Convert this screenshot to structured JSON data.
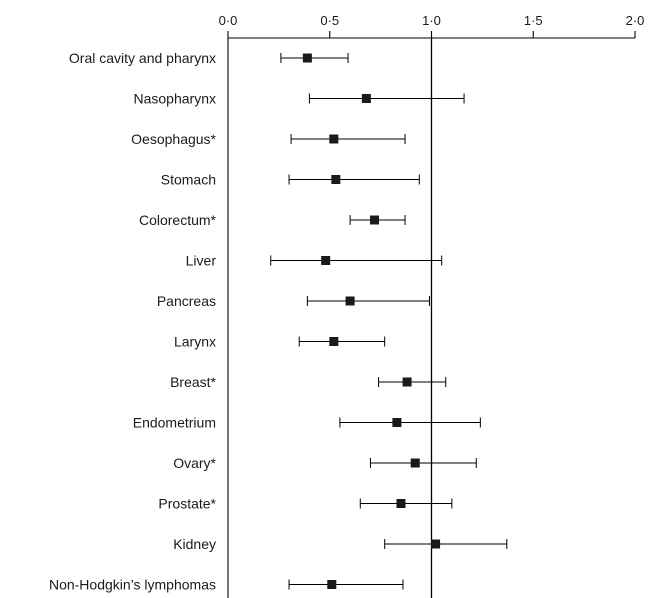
{
  "chart_data": {
    "type": "forest",
    "title": "",
    "xlabel": "",
    "ylabel": "",
    "xlim": [
      0,
      2
    ],
    "x_ticks": [
      0,
      0.5,
      1,
      1.5,
      2
    ],
    "x_tick_labels": [
      "0·0",
      "0·5",
      "1·0",
      "1·5",
      "2·0"
    ],
    "reference_line": 1,
    "grid": false,
    "categories": [
      "Oral cavity and pharynx",
      "Nasopharynx",
      "Oesophagus*",
      "Stomach",
      "Colorectum*",
      "Liver",
      "Pancreas",
      "Larynx",
      "Breast*",
      "Endometrium",
      "Ovary*",
      "Prostate*",
      "Kidney",
      "Non-Hodgkin’s lymphomas"
    ],
    "estimates": [
      0.39,
      0.68,
      0.52,
      0.53,
      0.72,
      0.48,
      0.6,
      0.52,
      0.88,
      0.83,
      0.92,
      0.85,
      1.02,
      0.51
    ],
    "lower": [
      0.26,
      0.4,
      0.31,
      0.3,
      0.6,
      0.21,
      0.39,
      0.35,
      0.74,
      0.55,
      0.7,
      0.65,
      0.77,
      0.3
    ],
    "upper": [
      0.59,
      1.16,
      0.87,
      0.94,
      0.87,
      1.05,
      0.99,
      0.77,
      1.07,
      1.24,
      1.22,
      1.1,
      1.37,
      0.86
    ]
  }
}
